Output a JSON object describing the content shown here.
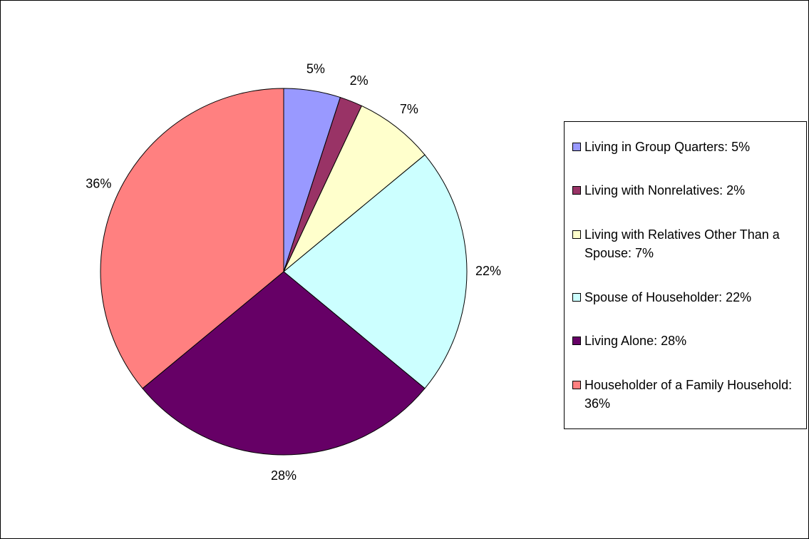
{
  "chart_data": {
    "type": "pie",
    "categories": [
      "Living in Group Quarters: 5%",
      "Living with Nonrelatives: 2%",
      "Living with Relatives Other Than a Spouse: 7%",
      "Spouse of Householder: 22%",
      "Living Alone: 28%",
      "Householder of a Family Household: 36%"
    ],
    "values": [
      5,
      2,
      7,
      22,
      28,
      36
    ],
    "value_labels": [
      "5%",
      "2%",
      "7%",
      "22%",
      "28%",
      "36%"
    ],
    "colors": [
      "#9999ff",
      "#993366",
      "#ffffcc",
      "#ccffff",
      "#660066",
      "#ff8080"
    ],
    "legend": "right"
  }
}
